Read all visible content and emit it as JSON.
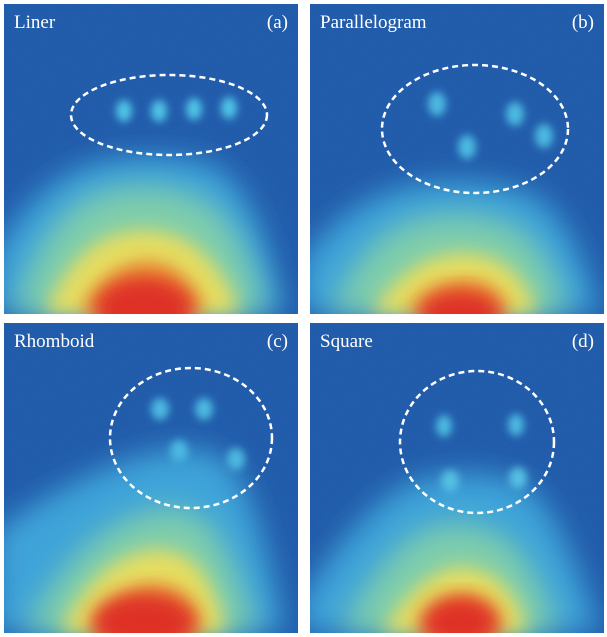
{
  "panels": [
    {
      "name": "Liner",
      "tag": "(a)"
    },
    {
      "name": "Parallelogram",
      "tag": "(b)"
    },
    {
      "name": "Rhomboid",
      "tag": "(c)"
    },
    {
      "name": "Square",
      "tag": "(d)"
    }
  ],
  "colormap": {
    "background": "#1d58a8",
    "low": "#3aa3d8",
    "mid": "#8fd2a0",
    "high": "#f0e050",
    "peak": "#e42a1e",
    "annotation": "#ffffff"
  }
}
